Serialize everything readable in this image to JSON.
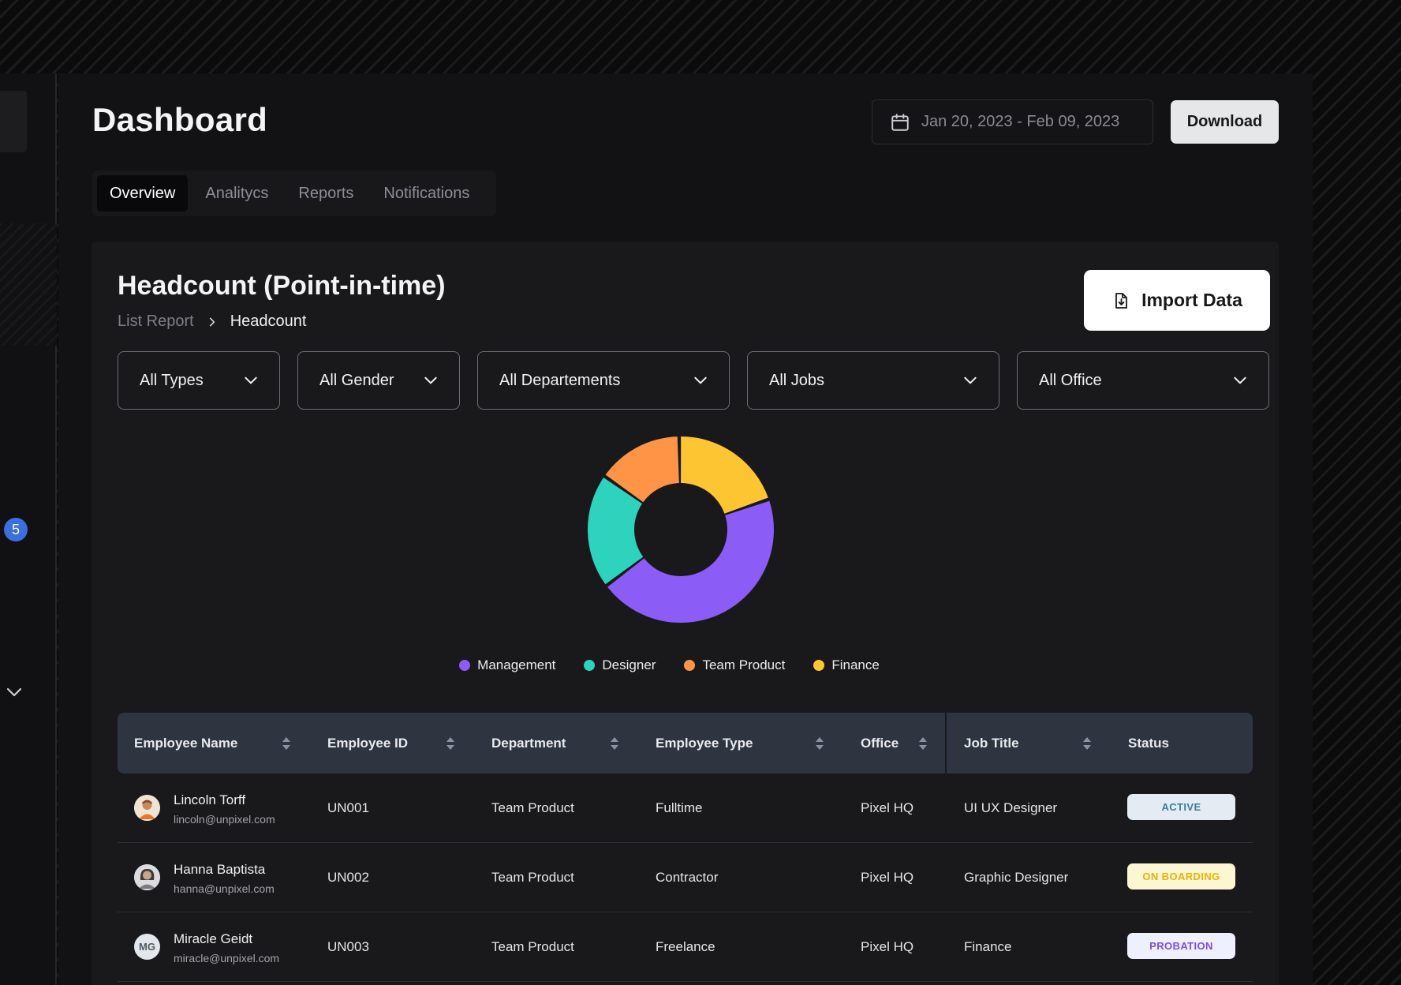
{
  "header": {
    "title": "Dashboard",
    "date_range": "Jan 20, 2023 - Feb 09, 2023",
    "download_label": "Download"
  },
  "sidebar": {
    "badge_count": "5"
  },
  "tabs": [
    {
      "label": "Overview",
      "active": true
    },
    {
      "label": "Analitycs",
      "active": false
    },
    {
      "label": "Reports",
      "active": false
    },
    {
      "label": "Notifications",
      "active": false
    }
  ],
  "card": {
    "title": "Headcount (Point-in-time)",
    "breadcrumb": [
      "List Report",
      "Headcount"
    ],
    "import_label": "Import Data"
  },
  "filters": [
    "All Types",
    "All Gender",
    "All Departements",
    "All Jobs",
    "All Office"
  ],
  "chart_data": {
    "type": "pie",
    "donut": true,
    "slices": [
      {
        "name": "Management",
        "value": 45,
        "color": "#8c5cf6"
      },
      {
        "name": "Designer",
        "value": 20,
        "color": "#2ed3bd"
      },
      {
        "name": "Team Product",
        "value": 15,
        "color": "#ff9446"
      },
      {
        "name": "Finance",
        "value": 20,
        "color": "#fec532"
      }
    ],
    "legend_position": "bottom"
  },
  "table": {
    "columns": [
      "Employee Name",
      "Employee ID",
      "Department",
      "Employee Type",
      "Office",
      "Job Title",
      "Status"
    ],
    "rows": [
      {
        "name": "Lincoln Torff",
        "email": "lincoln@unpixel.com",
        "id": "UN001",
        "department": "Team Product",
        "type": "Fulltime",
        "office": "Pixel HQ",
        "job": "UI UX Designer",
        "status": "ACTIVE",
        "status_bg": "#e4ebf2",
        "status_fg": "#3b7f9a",
        "avatar": "photo-orange"
      },
      {
        "name": "Hanna Baptista",
        "email": "hanna@unpixel.com",
        "id": "UN002",
        "department": "Team Product",
        "type": "Contractor",
        "office": "Pixel HQ",
        "job": "Graphic Designer",
        "status": "ON BOARDING",
        "status_bg": "#fdf6d3",
        "status_fg": "#eab308",
        "avatar": "photo-gray"
      },
      {
        "name": "Miracle Geidt",
        "email": "miracle@unpixel.com",
        "id": "UN003",
        "department": "Team Product",
        "type": "Freelance",
        "office": "Pixel HQ",
        "job": "Finance",
        "status": "PROBATION",
        "status_bg": "#eef0ff",
        "status_fg": "#7c4ddf",
        "avatar": "initials",
        "initials": "MG"
      }
    ]
  }
}
